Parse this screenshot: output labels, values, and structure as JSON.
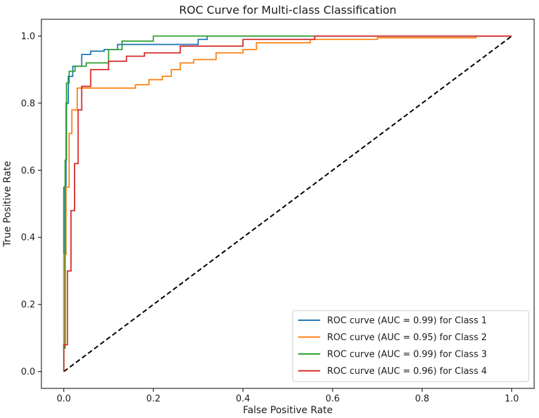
{
  "chart_data": {
    "type": "line",
    "title": "ROC Curve for Multi-class Classification",
    "xlabel": "False Positive Rate",
    "ylabel": "True Positive Rate",
    "xlim": [
      -0.05,
      1.05
    ],
    "ylim": [
      -0.05,
      1.05
    ],
    "xticks": [
      "0.0",
      "0.2",
      "0.4",
      "0.6",
      "0.8",
      "1.0"
    ],
    "yticks": [
      "0.0",
      "0.2",
      "0.4",
      "0.6",
      "0.8",
      "1.0"
    ],
    "grid": false,
    "legend_position": "lower right",
    "series": [
      {
        "name": "ROC curve (AUC = 0.99) for Class 1",
        "color": "#1f77b4",
        "x": [
          0,
          0,
          0.005,
          0.005,
          0.01,
          0.01,
          0.02,
          0.02,
          0.04,
          0.04,
          0.06,
          0.06,
          0.09,
          0.09,
          0.12,
          0.12,
          0.3,
          0.3,
          0.32,
          0.32,
          1.0
        ],
        "y": [
          0,
          0.55,
          0.55,
          0.8,
          0.8,
          0.88,
          0.88,
          0.91,
          0.91,
          0.945,
          0.945,
          0.955,
          0.955,
          0.96,
          0.96,
          0.975,
          0.975,
          0.99,
          0.99,
          1.0,
          1.0
        ]
      },
      {
        "name": "ROC curve (AUC = 0.95) for Class 2",
        "color": "#ff7f0e",
        "x": [
          0,
          0,
          0.005,
          0.005,
          0.012,
          0.012,
          0.018,
          0.018,
          0.03,
          0.03,
          0.16,
          0.16,
          0.19,
          0.19,
          0.22,
          0.22,
          0.24,
          0.24,
          0.26,
          0.26,
          0.29,
          0.29,
          0.34,
          0.34,
          0.4,
          0.4,
          0.43,
          0.43,
          0.55,
          0.55,
          0.7,
          0.7,
          0.92,
          0.92,
          1.0
        ],
        "y": [
          0,
          0.35,
          0.35,
          0.55,
          0.55,
          0.71,
          0.71,
          0.78,
          0.78,
          0.845,
          0.845,
          0.855,
          0.855,
          0.87,
          0.87,
          0.88,
          0.88,
          0.9,
          0.9,
          0.92,
          0.92,
          0.93,
          0.93,
          0.95,
          0.95,
          0.96,
          0.96,
          0.98,
          0.98,
          0.99,
          0.99,
          0.995,
          0.995,
          1.0,
          1.0
        ]
      },
      {
        "name": "ROC curve (AUC = 0.99) for Class 3",
        "color": "#2ca02c",
        "x": [
          0,
          0,
          0.003,
          0.003,
          0.006,
          0.006,
          0.012,
          0.012,
          0.025,
          0.025,
          0.05,
          0.05,
          0.1,
          0.1,
          0.13,
          0.13,
          0.2,
          0.2,
          1.0
        ],
        "y": [
          0,
          0.07,
          0.07,
          0.63,
          0.63,
          0.86,
          0.86,
          0.895,
          0.895,
          0.91,
          0.91,
          0.92,
          0.92,
          0.96,
          0.96,
          0.985,
          0.985,
          1.0,
          1.0
        ]
      },
      {
        "name": "ROC curve (AUC = 0.96) for Class 4",
        "color": "#d62728",
        "x": [
          0,
          0,
          0.008,
          0.008,
          0.016,
          0.016,
          0.024,
          0.024,
          0.032,
          0.032,
          0.04,
          0.04,
          0.06,
          0.06,
          0.1,
          0.1,
          0.14,
          0.14,
          0.18,
          0.18,
          0.26,
          0.26,
          0.4,
          0.4,
          0.56,
          0.56,
          1.0
        ],
        "y": [
          0,
          0.08,
          0.08,
          0.3,
          0.3,
          0.48,
          0.48,
          0.62,
          0.62,
          0.78,
          0.78,
          0.85,
          0.85,
          0.9,
          0.9,
          0.925,
          0.925,
          0.94,
          0.94,
          0.95,
          0.95,
          0.97,
          0.97,
          0.99,
          0.99,
          1.0,
          1.0
        ]
      }
    ],
    "reference_line": {
      "x": [
        0,
        1
      ],
      "y": [
        0,
        1
      ],
      "color": "#000000",
      "style": "dashed"
    }
  }
}
